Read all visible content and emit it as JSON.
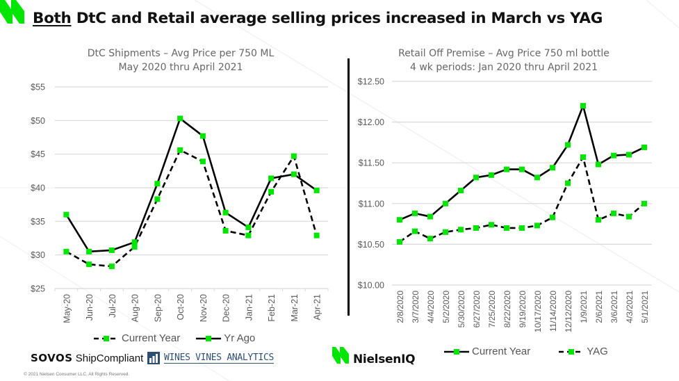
{
  "slide": {
    "title_underlined": "Both",
    "title_rest": " DtC and Retail average selling prices increased in March vs YAG",
    "copyright": "© 2021 Nielsen Consumer LLC. All Rights Reserved.",
    "logos": {
      "sovos_bold": "SOVOS",
      "sovos_rest": " ShipCompliant",
      "wva": "WINES VINES ANALYTICS",
      "nielseniq": "NielsenIQ"
    },
    "colors": {
      "accent": "#00e600",
      "line": "#000000",
      "grid": "#d9d9d9",
      "axis_text": "#595959"
    }
  },
  "chart_data": [
    {
      "type": "line",
      "title": "DtC Shipments – Avg Price per 750 ML",
      "subtitle": "May 2020 thru April 2021",
      "xlabel": "",
      "ylabel": "",
      "ylim": [
        25,
        55
      ],
      "yticks": [
        25,
        30,
        35,
        40,
        45,
        50,
        55
      ],
      "ytick_labels": [
        "$25",
        "$30",
        "$35",
        "$40",
        "$45",
        "$50",
        "$55"
      ],
      "grid": true,
      "legend": "bottom",
      "categories": [
        "May-20",
        "Jun-20",
        "Jul-20",
        "Aug-20",
        "Sep-20",
        "Oct-20",
        "Nov-20",
        "Dec-20",
        "Jan-21",
        "Feb-21",
        "Mar-21",
        "Apr-21"
      ],
      "series": [
        {
          "name": "Current Year",
          "style": "dashed",
          "values": [
            30.5,
            28.6,
            28.3,
            31.2,
            38.3,
            45.6,
            43.9,
            33.6,
            32.9,
            39.4,
            44.7,
            32.9
          ]
        },
        {
          "name": "Yr Ago",
          "style": "solid",
          "values": [
            36.0,
            30.5,
            30.7,
            31.9,
            40.6,
            50.3,
            47.7,
            36.3,
            34.1,
            41.4,
            42.0,
            39.6
          ]
        }
      ]
    },
    {
      "type": "line",
      "title": "Retail Off Premise – Avg Price 750 ml bottle",
      "subtitle": "4 wk periods: Jan 2020 thru April 2021",
      "xlabel": "",
      "ylabel": "",
      "ylim": [
        10.0,
        12.5
      ],
      "yticks": [
        10.0,
        10.5,
        11.0,
        11.5,
        12.0,
        12.5
      ],
      "ytick_labels": [
        "$10.00",
        "$10.50",
        "$11.00",
        "$11.50",
        "$12.00",
        "$12.50"
      ],
      "grid": true,
      "legend": "bottom",
      "categories": [
        "2/8/2020",
        "3/7/2020",
        "4/4/2020",
        "5/2/2020",
        "5/30/2020",
        "6/27/2020",
        "7/25/2020",
        "8/22/2020",
        "9/19/2020",
        "10/17/2020",
        "11/14/2020",
        "12/12/2020",
        "1/9/2021",
        "2/6/2021",
        "3/6/2021",
        "4/3/2021",
        "5/1/2021"
      ],
      "series": [
        {
          "name": "Current Year",
          "style": "solid",
          "values": [
            10.8,
            10.88,
            10.84,
            11.0,
            11.16,
            11.32,
            11.35,
            11.42,
            11.42,
            11.32,
            11.44,
            11.72,
            12.2,
            11.48,
            11.59,
            11.6,
            11.69
          ]
        },
        {
          "name": "YAG",
          "style": "dashed",
          "values": [
            10.53,
            10.66,
            10.57,
            10.65,
            10.68,
            10.7,
            10.74,
            10.7,
            10.7,
            10.73,
            10.83,
            11.25,
            11.57,
            10.8,
            10.88,
            10.84,
            11.0
          ]
        }
      ]
    }
  ]
}
